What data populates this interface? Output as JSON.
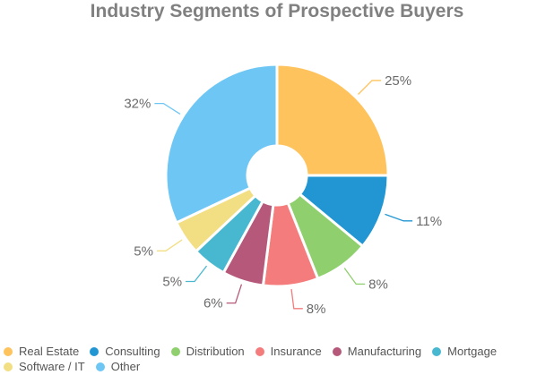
{
  "chart_data": {
    "type": "pie",
    "title": "Industry Segments of Prospective Buyers",
    "donut": true,
    "legend_position": "bottom",
    "slices": [
      {
        "name": "Real Estate",
        "value": 25,
        "label": "25%",
        "color": "#FEC35D"
      },
      {
        "name": "Consulting",
        "value": 11,
        "label": "11%",
        "color": "#2196D3"
      },
      {
        "name": "Distribution",
        "value": 8,
        "label": "8%",
        "color": "#8FCF6E"
      },
      {
        "name": "Insurance",
        "value": 8,
        "label": "8%",
        "color": "#F47C7C"
      },
      {
        "name": "Manufacturing",
        "value": 6,
        "label": "6%",
        "color": "#B5587A"
      },
      {
        "name": "Mortgage",
        "value": 5,
        "label": "5%",
        "color": "#48B8D0"
      },
      {
        "name": "Software / IT",
        "value": 5,
        "label": "5%",
        "color": "#F2DE83"
      },
      {
        "name": "Other",
        "value": 32,
        "label": "32%",
        "color": "#6EC6F5"
      }
    ]
  }
}
